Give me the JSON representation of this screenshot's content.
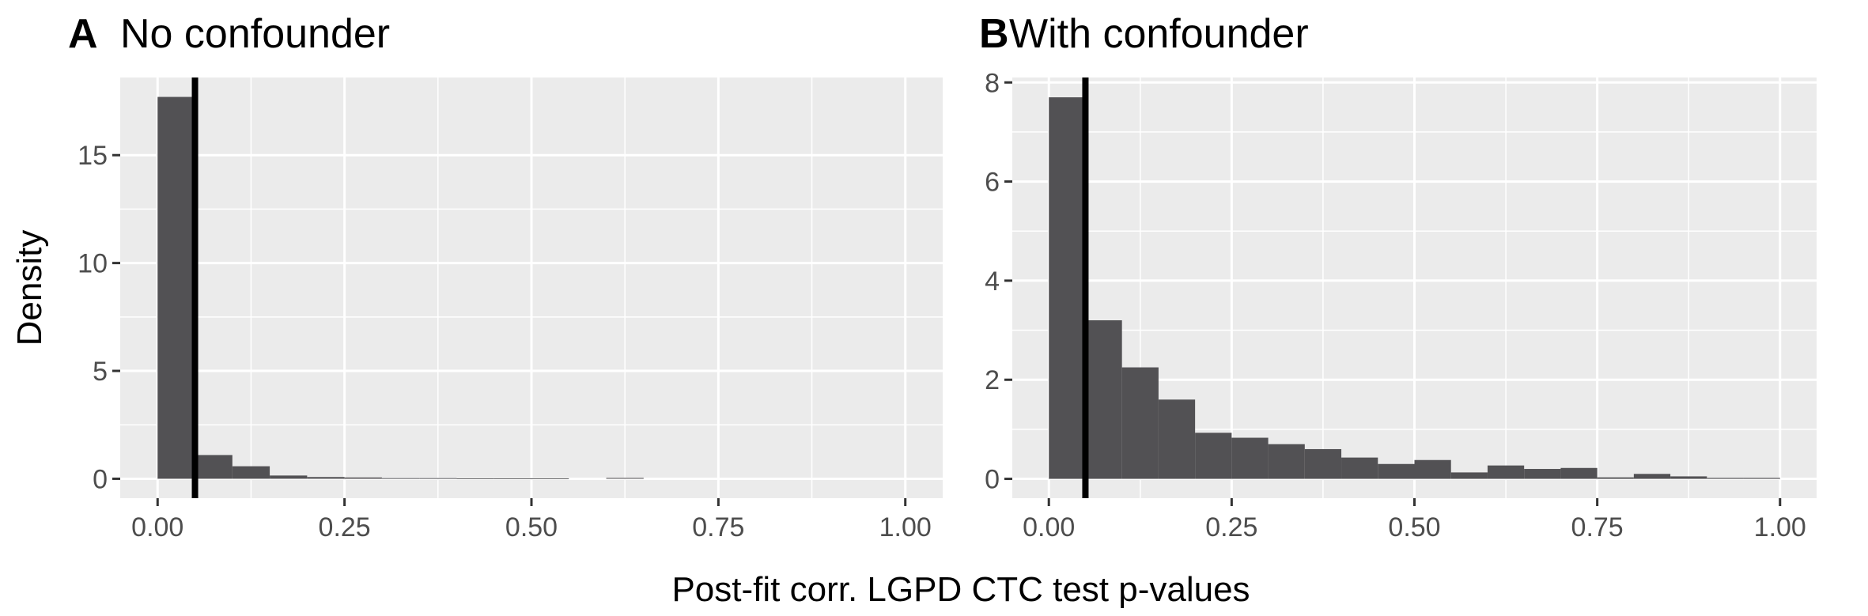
{
  "figure": {
    "xlabel": "Post-fit corr. LGPD CTC test p-values",
    "ylabel": "Density"
  },
  "colors": {
    "panel_background": "#ebebeb",
    "grid_major": "#ffffff",
    "bar_fill": "#525154",
    "reference_line": "#000000",
    "tick_text": "#4d4d4d"
  },
  "chart_data": [
    {
      "type": "bar",
      "panel_label": "A",
      "title": "No confounder",
      "xlim": [
        -0.05,
        1.05
      ],
      "ylim": [
        -0.9,
        18.6
      ],
      "x_ticks": [
        0,
        0.25,
        0.5,
        0.75,
        1
      ],
      "x_tick_labels": [
        "0.00",
        "0.25",
        "0.50",
        "0.75",
        "1.00"
      ],
      "y_ticks": [
        0,
        5,
        10,
        15
      ],
      "y_tick_labels": [
        "0",
        "5",
        "10",
        "15"
      ],
      "bin_width": 0.05,
      "bins": [
        0,
        0.05,
        0.1,
        0.15,
        0.2,
        0.25,
        0.3,
        0.35,
        0.4,
        0.45,
        0.5,
        0.55,
        0.6,
        0.65,
        0.7,
        0.75,
        0.8,
        0.85,
        0.9,
        0.95
      ],
      "values": [
        17.7,
        1.1,
        0.58,
        0.15,
        0.08,
        0.06,
        0.03,
        0.03,
        0.02,
        0.02,
        0.02,
        0,
        0.04,
        0,
        0,
        0,
        0,
        0,
        0,
        0
      ],
      "vline": 0.05,
      "grid": true
    },
    {
      "type": "bar",
      "panel_label": "B",
      "title": "With confounder",
      "xlim": [
        -0.05,
        1.05
      ],
      "ylim": [
        -0.39,
        8.1
      ],
      "x_ticks": [
        0,
        0.25,
        0.5,
        0.75,
        1
      ],
      "x_tick_labels": [
        "0.00",
        "0.25",
        "0.50",
        "0.75",
        "1.00"
      ],
      "y_ticks": [
        0,
        2,
        4,
        6,
        8
      ],
      "y_tick_labels": [
        "0",
        "2",
        "4",
        "6",
        "8"
      ],
      "bin_width": 0.05,
      "bins": [
        0,
        0.05,
        0.1,
        0.15,
        0.2,
        0.25,
        0.3,
        0.35,
        0.4,
        0.45,
        0.5,
        0.55,
        0.6,
        0.65,
        0.7,
        0.75,
        0.8,
        0.85,
        0.9,
        0.95
      ],
      "values": [
        7.7,
        3.2,
        2.25,
        1.6,
        0.93,
        0.83,
        0.7,
        0.6,
        0.43,
        0.3,
        0.38,
        0.13,
        0.27,
        0.2,
        0.22,
        0.03,
        0.1,
        0.05,
        0.02,
        0.02
      ],
      "vline": 0.05,
      "grid": true
    }
  ]
}
